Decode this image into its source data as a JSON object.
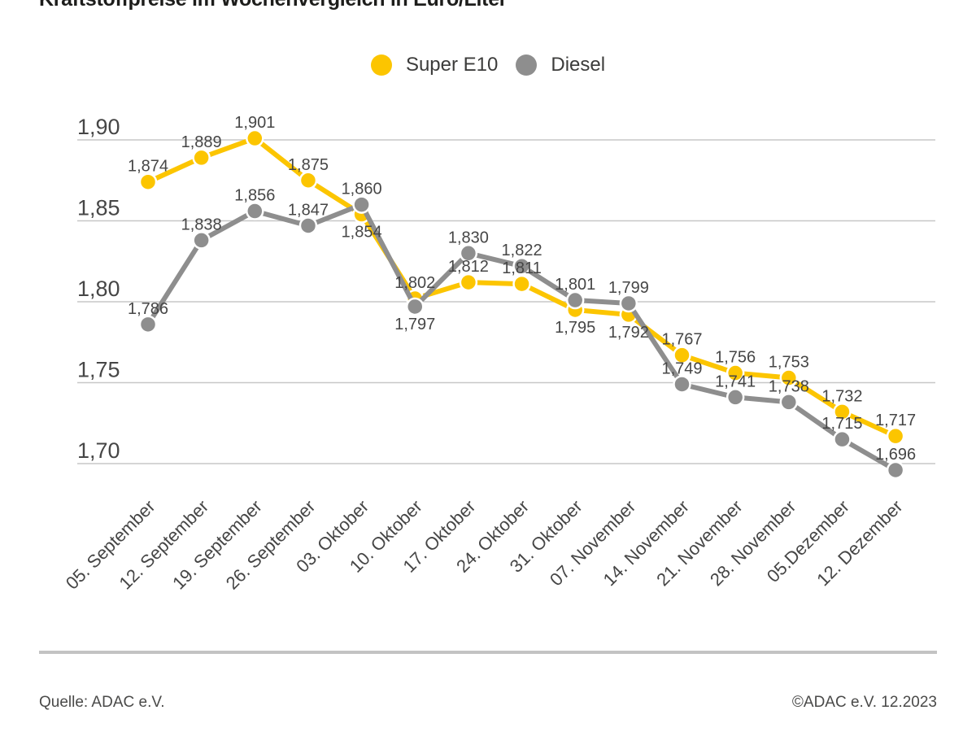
{
  "title": "Kraftstoffpreise im Wochenvergleich in Euro/Liter",
  "legend": {
    "items": [
      {
        "label": "Super E10",
        "color": "#FCC500"
      },
      {
        "label": "Diesel",
        "color": "#8E8E8E"
      }
    ]
  },
  "footer": {
    "source": "Quelle: ADAC e.V.",
    "copyright": "©ADAC e.V. 12.2023"
  },
  "chart_data": {
    "type": "line",
    "title": "Kraftstoffpreise im Wochenvergleich in Euro/Liter",
    "unit": "Euro/Liter",
    "grid": true,
    "legend_position": "top-center",
    "ylim": [
      1.675,
      1.915
    ],
    "yticks": [
      {
        "value": 1.9,
        "label": "1,90"
      },
      {
        "value": 1.85,
        "label": "1,85"
      },
      {
        "value": 1.8,
        "label": "1,80"
      },
      {
        "value": 1.75,
        "label": "1,75"
      },
      {
        "value": 1.7,
        "label": "1,70"
      }
    ],
    "categories": [
      "05. September",
      "12. September",
      "19. September",
      "26. September",
      "03. Oktober",
      "10. Oktober",
      "17. Oktober",
      "24. Oktober",
      "31. Oktober",
      "07. November",
      "14. November",
      "21. November",
      "28. November",
      "05.Dezember",
      "12. Dezember"
    ],
    "series": [
      {
        "name": "Super E10",
        "color": "#FCC500",
        "values": [
          1.874,
          1.889,
          1.901,
          1.875,
          1.854,
          1.802,
          1.812,
          1.811,
          1.795,
          1.792,
          1.767,
          1.756,
          1.753,
          1.732,
          1.717
        ],
        "label_pos": [
          "above",
          "above",
          "above",
          "above",
          "below",
          "above",
          "above",
          "above",
          "below",
          "below",
          "above",
          "above",
          "above",
          "above",
          "above"
        ]
      },
      {
        "name": "Diesel",
        "color": "#8E8E8E",
        "values": [
          1.786,
          1.838,
          1.856,
          1.847,
          1.86,
          1.797,
          1.83,
          1.822,
          1.801,
          1.799,
          1.749,
          1.741,
          1.738,
          1.715,
          1.696
        ],
        "label_pos": [
          "above",
          "above",
          "above",
          "above",
          "above",
          "below",
          "above",
          "above",
          "above",
          "above",
          "above",
          "above",
          "above",
          "above",
          "above"
        ]
      }
    ]
  }
}
